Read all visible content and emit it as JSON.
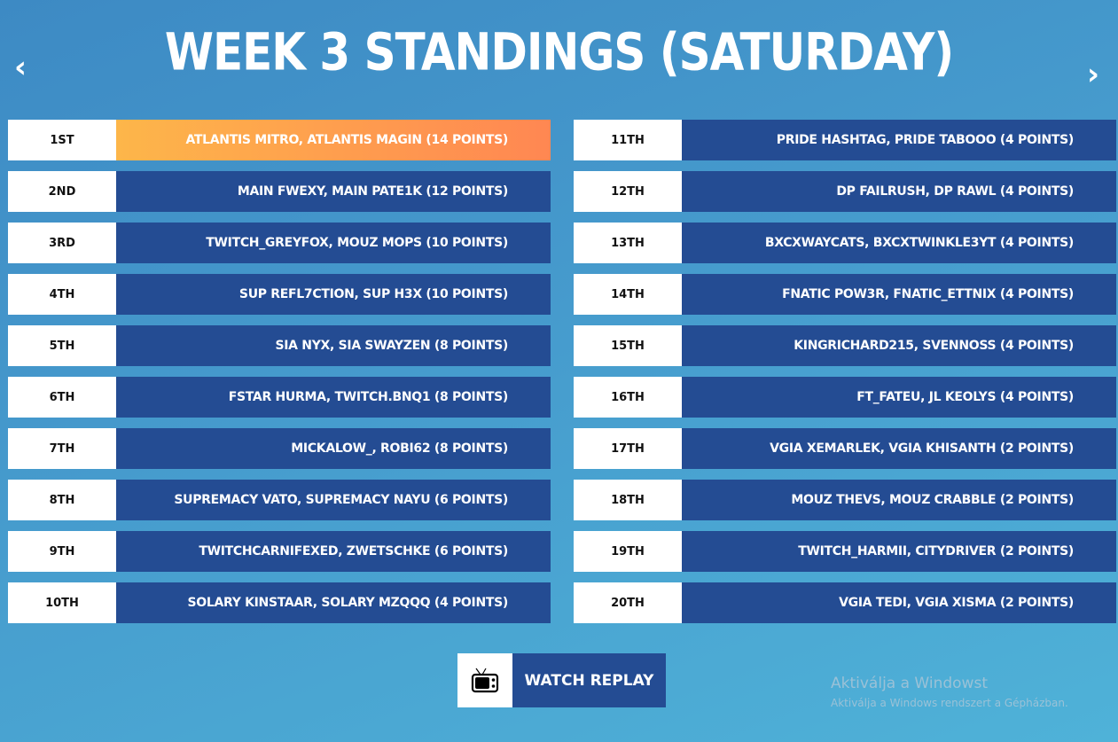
{
  "title": "WEEK 3 STANDINGS (SATURDAY)",
  "nav": {
    "prev_icon": "chevron-left-icon",
    "next_icon": "chevron-right-icon",
    "prev": "‹",
    "next": "›"
  },
  "standings_left": [
    {
      "rank": "1ST",
      "team": "ATLANTIS MITRO, ATLANTIS MAGIN (14 POINTS)"
    },
    {
      "rank": "2ND",
      "team": "MAIN FWEXY, MAIN PATE1K (12 POINTS)"
    },
    {
      "rank": "3RD",
      "team": "TWITCH_GREYFOX, MOUZ MOPS (10 POINTS)"
    },
    {
      "rank": "4TH",
      "team": "SUP REFL7CTION, SUP H3X (10 POINTS)"
    },
    {
      "rank": "5TH",
      "team": "SIA NYX, SIA SWAYZEN (8 POINTS)"
    },
    {
      "rank": "6TH",
      "team": "FSTAR HURMA, TWITCH.BNQ1 (8 POINTS)"
    },
    {
      "rank": "7TH",
      "team": "MICKALOW_, ROBI62 (8 POINTS)"
    },
    {
      "rank": "8TH",
      "team": "SUPREMACY VATO, SUPREMACY NAYU (6 POINTS)"
    },
    {
      "rank": "9TH",
      "team": "TWITCHCARNIFEXED, ZWETSCHKE (6 POINTS)"
    },
    {
      "rank": "10TH",
      "team": "SOLARY KINSTAAR, SOLARY MZQQQ (4 POINTS)"
    }
  ],
  "standings_right": [
    {
      "rank": "11TH",
      "team": "PRIDE HASHTAG, PRIDE TABOOO (4 POINTS)"
    },
    {
      "rank": "12TH",
      "team": "DP FAILRUSH, DP RAWL (4 POINTS)"
    },
    {
      "rank": "13TH",
      "team": "BXCXWAYCATS, BXCXTWINKLE3YT (4 POINTS)"
    },
    {
      "rank": "14TH",
      "team": "FNATIC POW3R, FNATIC_ETTNIX (4 POINTS)"
    },
    {
      "rank": "15TH",
      "team": "KINGRICHARD215, SVENNOSS (4 POINTS)"
    },
    {
      "rank": "16TH",
      "team": "FT_FATEU, JL KEOLYS (4 POINTS)"
    },
    {
      "rank": "17TH",
      "team": "VGIA XEMARLEK, VGIA KHISANTH (2 POINTS)"
    },
    {
      "rank": "18TH",
      "team": "MOUZ THEVS, MOUZ CRABBLE (2 POINTS)"
    },
    {
      "rank": "19TH",
      "team": "TWITCH_HARMII, CITYDRIVER (2 POINTS)"
    },
    {
      "rank": "20TH",
      "team": "VGIA TEDI, VGIA XISMA (2 POINTS)"
    }
  ],
  "replay": {
    "label": "WATCH REPLAY",
    "icon": "tv-icon"
  },
  "watermark": {
    "line1": "Aktiválja a Windowst",
    "line2": "Aktiválja a Windows rendszert a Gépházban."
  },
  "colors": {
    "row_bg": "#244c93",
    "first_gradient": [
      "#fdb64a",
      "#ff8752"
    ],
    "background": "#4599cc"
  }
}
